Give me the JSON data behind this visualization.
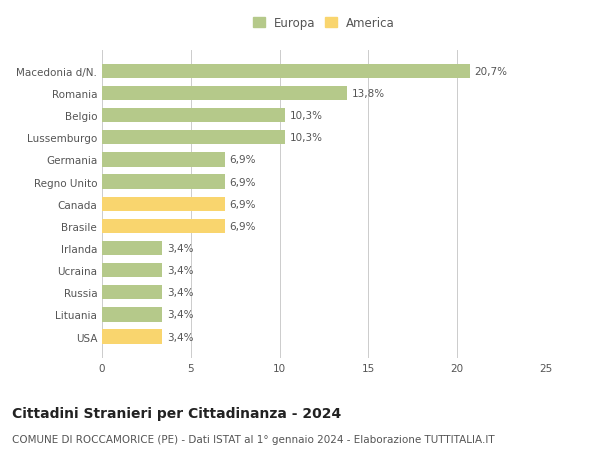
{
  "categories": [
    "Macedonia d/N.",
    "Romania",
    "Belgio",
    "Lussemburgo",
    "Germania",
    "Regno Unito",
    "Canada",
    "Brasile",
    "Irlanda",
    "Ucraina",
    "Russia",
    "Lituania",
    "USA"
  ],
  "values": [
    20.7,
    13.8,
    10.3,
    10.3,
    6.9,
    6.9,
    6.9,
    6.9,
    3.4,
    3.4,
    3.4,
    3.4,
    3.4
  ],
  "labels": [
    "20,7%",
    "13,8%",
    "10,3%",
    "10,3%",
    "6,9%",
    "6,9%",
    "6,9%",
    "6,9%",
    "3,4%",
    "3,4%",
    "3,4%",
    "3,4%",
    "3,4%"
  ],
  "colors": [
    "#b5c98a",
    "#b5c98a",
    "#b5c98a",
    "#b5c98a",
    "#b5c98a",
    "#b5c98a",
    "#f9d56e",
    "#f9d56e",
    "#b5c98a",
    "#b5c98a",
    "#b5c98a",
    "#b5c98a",
    "#f9d56e"
  ],
  "europa_color": "#b5c98a",
  "america_color": "#f9d56e",
  "background_color": "#ffffff",
  "grid_color": "#cccccc",
  "title_main": "Cittadini Stranieri per Cittadinanza - 2024",
  "title_sub": "COMUNE DI ROCCAMORICE (PE) - Dati ISTAT al 1° gennaio 2024 - Elaborazione TUTTITALIA.IT",
  "xlim": [
    0,
    25
  ],
  "xticks": [
    0,
    5,
    10,
    15,
    20,
    25
  ],
  "bar_height": 0.65,
  "label_fontsize": 7.5,
  "tick_fontsize": 7.5,
  "legend_fontsize": 8.5,
  "title_fontsize": 10,
  "subtitle_fontsize": 7.5,
  "text_color": "#555555",
  "title_color": "#222222"
}
